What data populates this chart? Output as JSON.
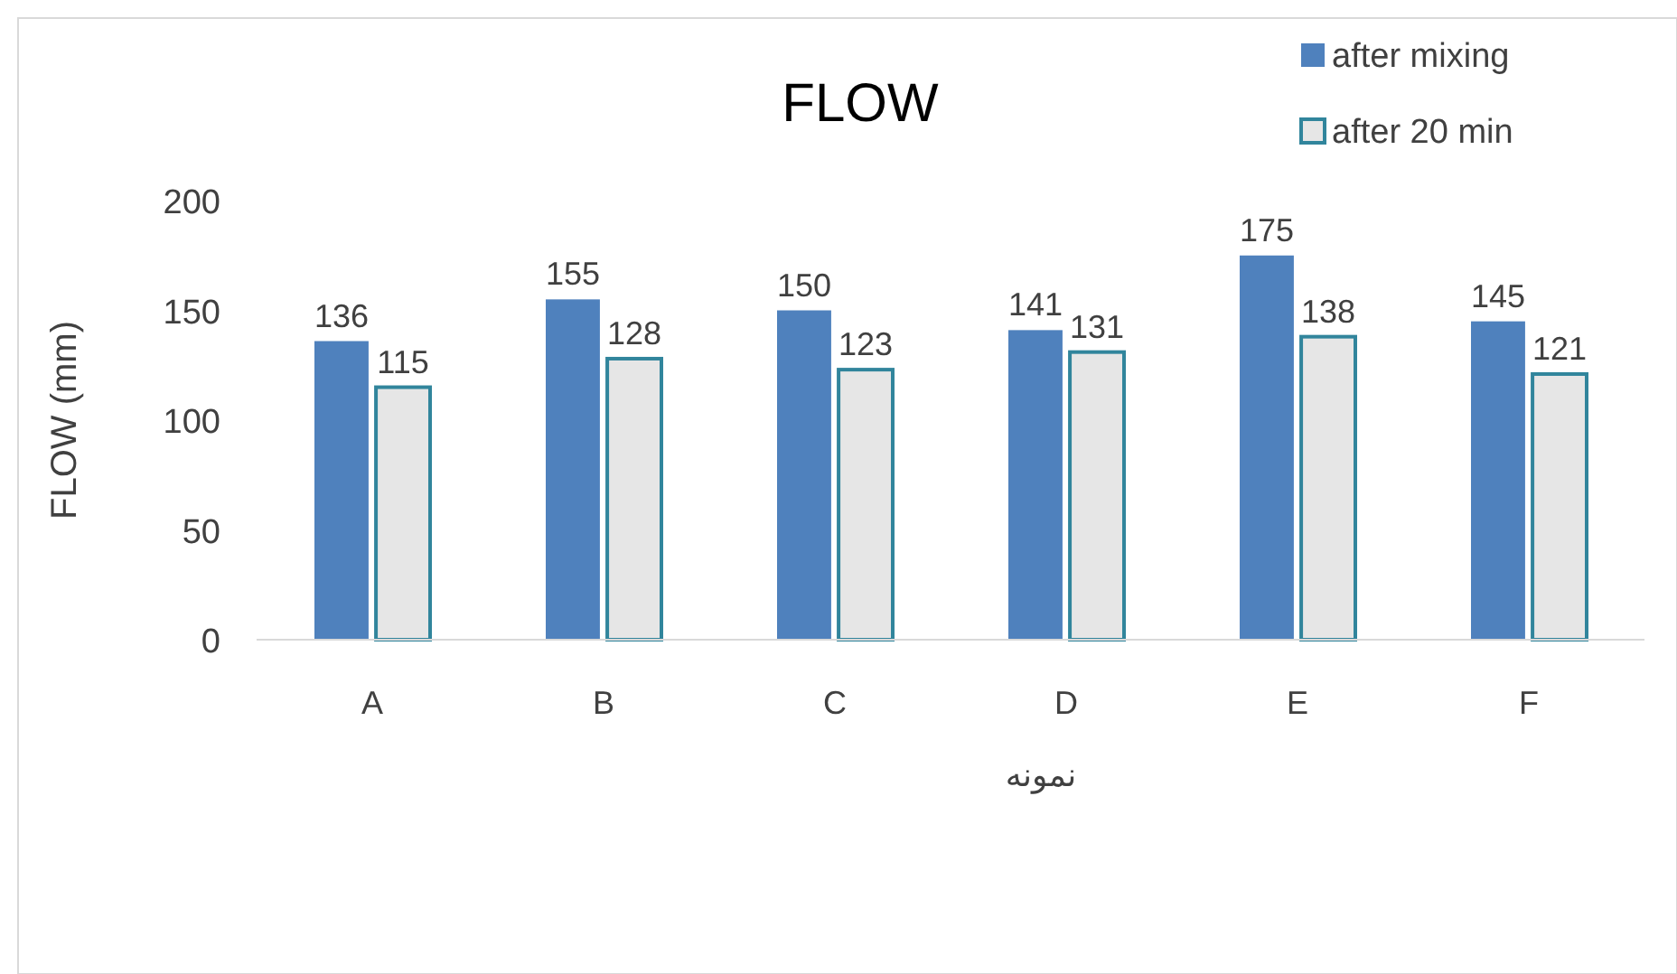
{
  "chart_data": {
    "type": "bar",
    "title": "FLOW",
    "ylabel": "FLOW (mm)",
    "xlabel": "نمونه",
    "categories": [
      "A",
      "B",
      "C",
      "D",
      "E",
      "F"
    ],
    "series": [
      {
        "name": "after mixing",
        "color": "#4f81bd",
        "values": [
          136,
          155,
          150,
          141,
          175,
          145
        ]
      },
      {
        "name": "after 20 min",
        "color": "#e6e6e6",
        "values": [
          115,
          128,
          123,
          131,
          138,
          121
        ]
      }
    ],
    "ylim": [
      0,
      200
    ],
    "yticks": [
      0,
      50,
      100,
      150,
      200
    ],
    "data_labels": true,
    "legend": "top right",
    "grid": false
  }
}
